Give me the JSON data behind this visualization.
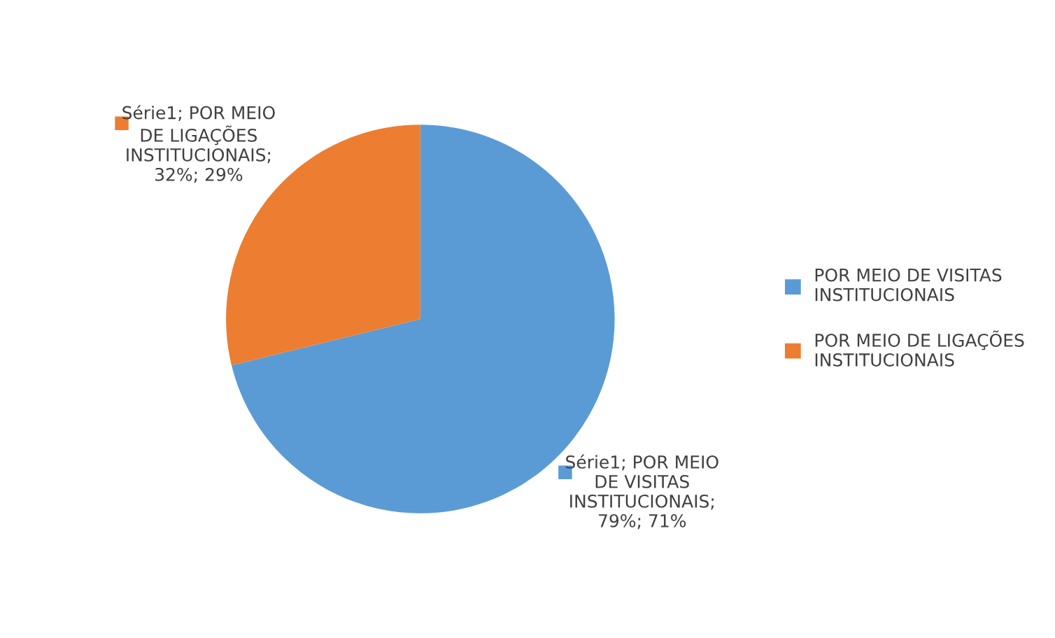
{
  "chart_data": {
    "type": "pie",
    "categories": [
      "POR MEIO DE VISITAS INSTITUCIONAIS",
      "POR MEIO DE LIGAÇÕES INSTITUCIONAIS"
    ],
    "values": [
      79,
      32
    ],
    "colors": [
      "#5b9bd5",
      "#ed7d31"
    ],
    "value_labels": [
      "Série1; POR MEIO DE VISITAS INSTITUCIONAIS; 79%; 71%",
      "Série1; POR MEIO DE LIGAÇÕES INSTITUCIONAIS; 32%; 29%"
    ],
    "legend": "right"
  }
}
